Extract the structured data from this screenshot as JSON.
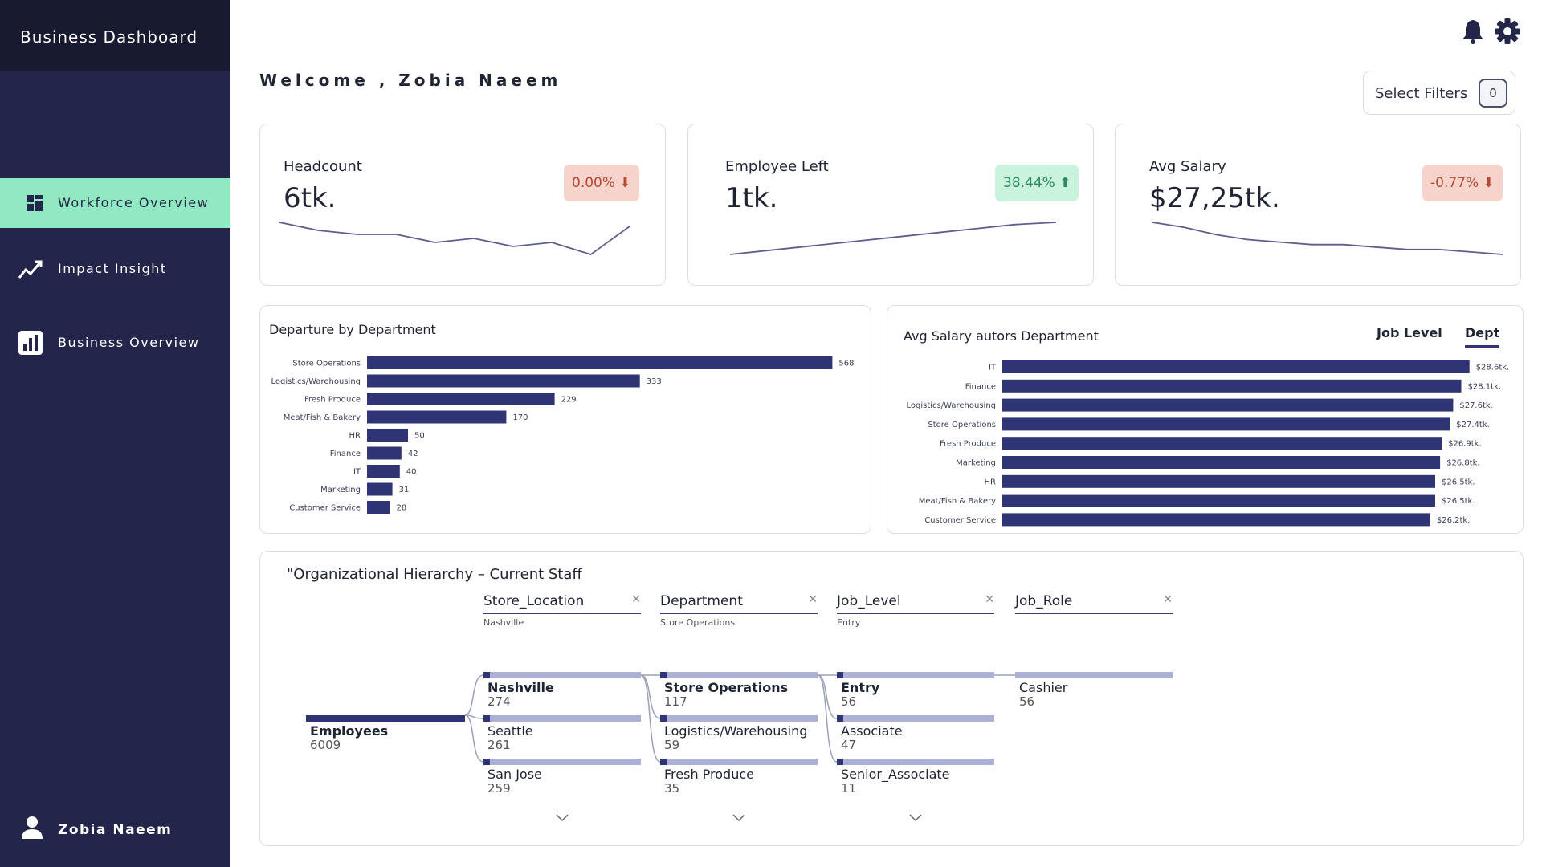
{
  "app": {
    "title": "Business Dashboard"
  },
  "sidebar": {
    "items": [
      {
        "label": "Workforce Overview",
        "icon": "dashboard-grid-icon",
        "active": true
      },
      {
        "label": "Impact Insight",
        "icon": "trend-line-icon",
        "active": false
      },
      {
        "label": "Business Overview",
        "icon": "bar-chart-icon",
        "active": false
      }
    ],
    "user": {
      "name": "Zobia Naeem",
      "icon": "user-icon"
    }
  },
  "header": {
    "welcome": "Welcome , Zobia Naeem",
    "icons": [
      "bell-icon",
      "gear-icon"
    ],
    "filter_label": "Select Filters",
    "filter_count": "0"
  },
  "kpis": [
    {
      "label": "Headcount",
      "value": "6tk.",
      "badge": "0.00% ⬇",
      "badge_tone": "negative",
      "trend": [
        10,
        8,
        7,
        7,
        5,
        6,
        4,
        5,
        2,
        9
      ]
    },
    {
      "label": "Employee Left",
      "value": "1tk.",
      "badge": "38.44% ⬆",
      "badge_tone": "positive",
      "trend": [
        0,
        2,
        4,
        6,
        8,
        10,
        12,
        14,
        15
      ]
    },
    {
      "label": "Avg Salary",
      "value": "$27,25tk.",
      "badge": "-0.77% ⬇",
      "badge_tone": "negative",
      "trend": [
        14,
        12,
        9,
        7,
        6,
        5,
        5,
        4,
        3,
        3,
        2,
        1
      ]
    }
  ],
  "colors": {
    "sidebar_bg": "#23254a",
    "active_nav": "#90e9c0",
    "bar": "#2e3474",
    "bar_light": "#adb0d6",
    "badge_red_bg": "#f7d4cb",
    "badge_green_bg": "#c9f3dd"
  },
  "departure_panel": {
    "title": "Departure by Department"
  },
  "salary_panel": {
    "title": "Avg Salary autors Department",
    "tabs": [
      {
        "label": "Job Level",
        "selected": false
      },
      {
        "label": "Dept",
        "selected": true
      }
    ]
  },
  "chart_data": [
    {
      "type": "bar",
      "orientation": "horizontal",
      "title": "Departure by Department",
      "categories": [
        "Store Operations",
        "Logistics/Warehousing",
        "Fresh Produce",
        "Meat/Fish & Bakery",
        "HR",
        "Finance",
        "IT",
        "Marketing",
        "Customer Service"
      ],
      "values": [
        568,
        333,
        229,
        170,
        50,
        42,
        40,
        31,
        28
      ],
      "value_labels": [
        "568",
        "333",
        "229",
        "170",
        "50",
        "42",
        "40",
        "31",
        "28"
      ],
      "xlim": [
        0,
        600
      ]
    },
    {
      "type": "bar",
      "orientation": "horizontal",
      "title": "Avg Salary autors Department",
      "categories": [
        "IT",
        "Finance",
        "Logistics/Warehousing",
        "Store Operations",
        "Fresh Produce",
        "Marketing",
        "HR",
        "Meat/Fish & Bakery",
        "Customer Service"
      ],
      "values": [
        28.6,
        28.1,
        27.6,
        27.4,
        26.9,
        26.8,
        26.5,
        26.5,
        26.2
      ],
      "value_labels": [
        "$28.6tk.",
        "$28.1tk.",
        "$27.6tk.",
        "$27.4tk.",
        "$26.9tk.",
        "$26.8tk.",
        "$26.5tk.",
        "$26.5tk.",
        "$26.2tk."
      ],
      "xlim": [
        0,
        29.5
      ]
    }
  ],
  "hierarchy": {
    "title": "\"Organizational Hierarchy – Current Staff",
    "columns": [
      {
        "name": "Store_Location",
        "value": "Nashville"
      },
      {
        "name": "Department",
        "value": "Store Operations"
      },
      {
        "name": "Job_Level",
        "value": "Entry"
      },
      {
        "name": "Job_Role",
        "value": ""
      }
    ],
    "root": {
      "label": "Employees",
      "value": "6009"
    },
    "levels": [
      [
        {
          "label": "Nashville",
          "value": "274",
          "selected": true
        },
        {
          "label": "Seattle",
          "value": "261"
        },
        {
          "label": "San Jose",
          "value": "259"
        }
      ],
      [
        {
          "label": "Store Operations",
          "value": "117",
          "selected": true
        },
        {
          "label": "Logistics/Warehousing",
          "value": "59"
        },
        {
          "label": "Fresh Produce",
          "value": "35"
        }
      ],
      [
        {
          "label": "Entry",
          "value": "56",
          "selected": true
        },
        {
          "label": "Associate",
          "value": "47"
        },
        {
          "label": "Senior_Associate",
          "value": "11"
        }
      ],
      [
        {
          "label": "Cashier",
          "value": "56"
        }
      ]
    ]
  }
}
